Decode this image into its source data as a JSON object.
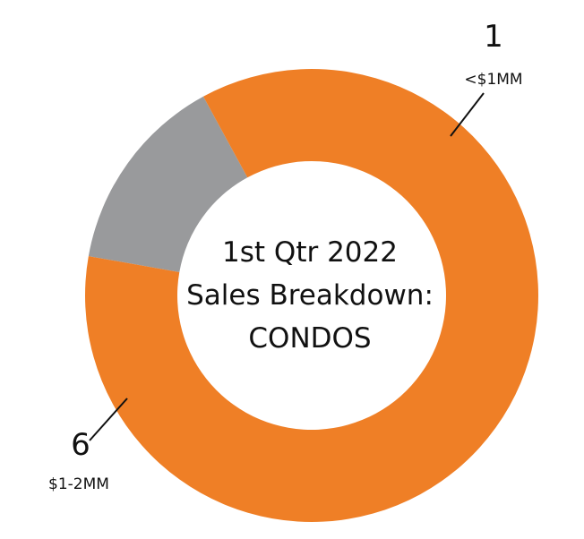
{
  "chart_data": {
    "type": "pie",
    "variant": "donut",
    "title_lines": [
      "1st Qtr 2022",
      "Sales Breakdown:",
      "CONDOS"
    ],
    "slices": [
      {
        "label": "<$1MM",
        "value": 1,
        "value_label": "1",
        "color": "#999a9c"
      },
      {
        "label": "$1-2MM",
        "value": 6,
        "value_label": "6",
        "color": "#ef7f26"
      }
    ]
  }
}
